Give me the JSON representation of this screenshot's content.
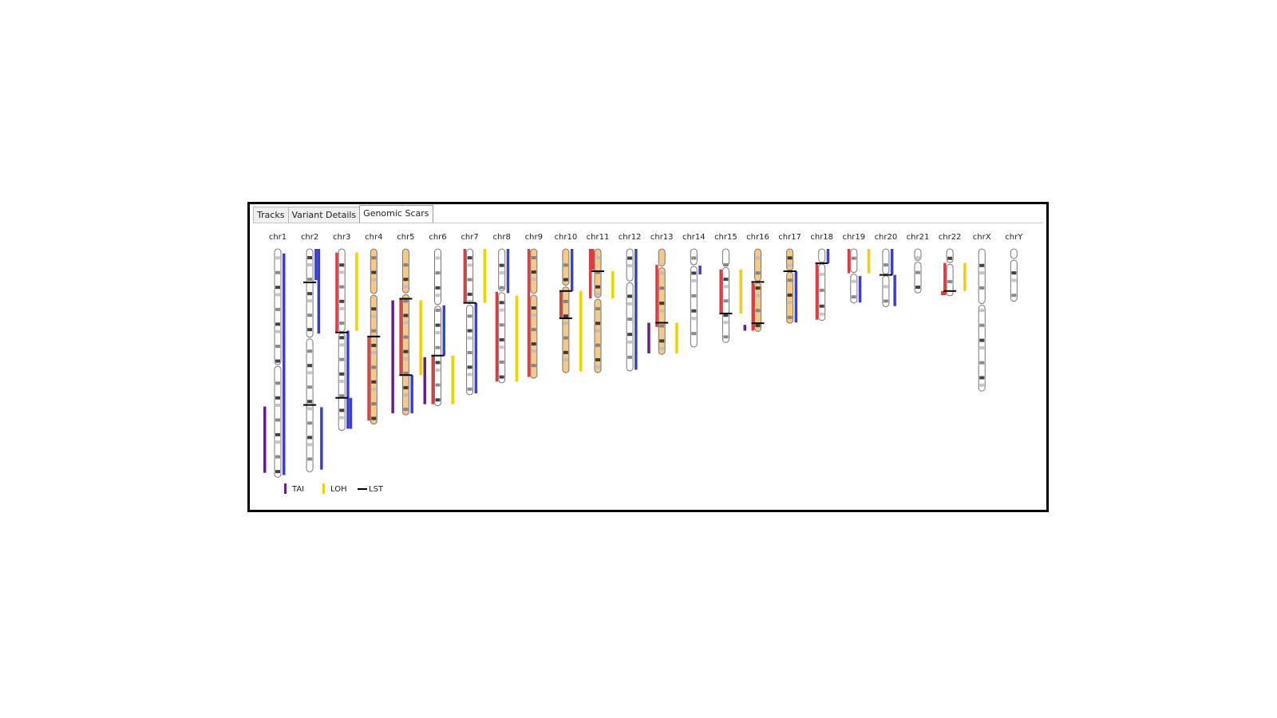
{
  "tabs": [
    {
      "label": "Tracks",
      "active": false
    },
    {
      "label": "Variant Details",
      "active": false
    },
    {
      "label": "Genomic Scars",
      "active": true
    }
  ],
  "colors": {
    "TAI": "#6a1b8c",
    "LOH": "#f2d000",
    "LST": "#000000",
    "copy_loss": "#e03c3c",
    "copy_gain": "#3a3fd0",
    "highlight": "#f4c98a"
  },
  "legend": [
    {
      "label": "TAI",
      "color": "#6a1b8c",
      "shape": "vbar"
    },
    {
      "label": "LOH",
      "color": "#f2d000",
      "shape": "vbar"
    },
    {
      "label": "LST",
      "color": "#000000",
      "shape": "hbar"
    }
  ],
  "chromosomes": [
    {
      "name": "chr1",
      "length": 249,
      "centromere": 0.51,
      "highlight": false,
      "loss": [],
      "gain": [
        [
          0.02,
          0.99
        ]
      ],
      "tai": [
        [
          0.69,
          0.98
        ]
      ],
      "loh": [],
      "lst": []
    },
    {
      "name": "chr2",
      "length": 243,
      "centromere": 0.4,
      "highlight": false,
      "loss": [],
      "gain": [
        [
          0.0,
          0.14
        ],
        [
          0.0,
          0.38
        ],
        [
          0.71,
          0.99
        ]
      ],
      "tai": [],
      "loh": [],
      "lst": [
        0.15,
        0.7
      ]
    },
    {
      "name": "chr3",
      "length": 198,
      "centromere": 0.46,
      "highlight": false,
      "loss": [
        [
          0.02,
          0.46
        ]
      ],
      "gain": [
        [
          0.45,
          0.99
        ],
        [
          0.82,
          0.99
        ]
      ],
      "tai": [],
      "loh": [
        [
          0.02,
          0.45
        ]
      ],
      "lst": [
        0.46,
        0.82
      ]
    },
    {
      "name": "chr4",
      "length": 191,
      "centromere": 0.26,
      "highlight": true,
      "loss": [
        [
          0.5,
          0.98
        ]
      ],
      "gain": [],
      "tai": [],
      "loh": [],
      "lst": [
        0.5
      ]
    },
    {
      "name": "chr5",
      "length": 181,
      "centromere": 0.27,
      "highlight": true,
      "loss": [
        [
          0.3,
          0.76
        ]
      ],
      "gain": [
        [
          0.76,
          0.99
        ]
      ],
      "tai": [
        [
          0.31,
          0.99
        ]
      ],
      "loh": [
        [
          0.31,
          0.76
        ]
      ],
      "lst": [
        0.3,
        0.76
      ]
    },
    {
      "name": "chr6",
      "length": 171,
      "centromere": 0.36,
      "highlight": false,
      "loss": [
        [
          0.68,
          0.99
        ]
      ],
      "gain": [
        [
          0.36,
          0.68
        ]
      ],
      "tai": [
        [
          0.69,
          0.99
        ]
      ],
      "loh": [
        [
          0.68,
          0.99
        ]
      ],
      "lst": [
        0.68
      ]
    },
    {
      "name": "chr7",
      "length": 159,
      "centromere": 0.38,
      "highlight": false,
      "loss": [
        [
          0.0,
          0.37
        ]
      ],
      "gain": [
        [
          0.37,
          0.99
        ]
      ],
      "tai": [],
      "loh": [
        [
          0.0,
          0.37
        ]
      ],
      "lst": [
        0.37
      ]
    },
    {
      "name": "chr8",
      "length": 146,
      "centromere": 0.32,
      "highlight": false,
      "loss": [
        [
          0.32,
          0.99
        ]
      ],
      "gain": [
        [
          0.0,
          0.33
        ]
      ],
      "tai": [],
      "loh": [
        [
          0.35,
          0.99
        ]
      ],
      "lst": []
    },
    {
      "name": "chr9",
      "length": 141,
      "centromere": 0.35,
      "highlight": true,
      "loss": [
        [
          0.0,
          0.99
        ]
      ],
      "gain": [],
      "tai": [],
      "loh": [],
      "lst": []
    },
    {
      "name": "chr10",
      "length": 135,
      "centromere": 0.3,
      "highlight": true,
      "loss": [
        [
          0.34,
          0.56
        ]
      ],
      "gain": [
        [
          0.0,
          0.34
        ]
      ],
      "tai": [],
      "loh": [
        [
          0.34,
          0.99
        ]
      ],
      "lst": [
        0.34,
        0.56
      ]
    },
    {
      "name": "chr11",
      "length": 135,
      "centromere": 0.4,
      "highlight": true,
      "loss": [
        [
          0.0,
          0.17
        ],
        [
          0.0,
          0.4
        ]
      ],
      "gain": [],
      "tai": [],
      "loh": [
        [
          0.18,
          0.4
        ]
      ],
      "lst": [
        0.18
      ]
    },
    {
      "name": "chr12",
      "length": 133,
      "centromere": 0.27,
      "highlight": false,
      "loss": [],
      "gain": [
        [
          0.0,
          0.99
        ]
      ],
      "tai": [],
      "loh": [],
      "lst": []
    },
    {
      "name": "chr13",
      "length": 115,
      "centromere": 0.17,
      "highlight": true,
      "loss": [
        [
          0.15,
          0.74
        ]
      ],
      "gain": [],
      "tai": [
        [
          0.7,
          0.99
        ]
      ],
      "loh": [
        [
          0.7,
          0.99
        ]
      ],
      "lst": [
        0.7
      ]
    },
    {
      "name": "chr14",
      "length": 107,
      "centromere": 0.17,
      "highlight": false,
      "loss": [],
      "gain": [
        [
          0.17,
          0.26
        ]
      ],
      "tai": [],
      "loh": [],
      "lst": []
    },
    {
      "name": "chr15",
      "length": 102,
      "centromere": 0.19,
      "highlight": false,
      "loss": [
        [
          0.22,
          0.69
        ]
      ],
      "gain": [],
      "tai": [],
      "loh": [
        [
          0.22,
          0.69
        ]
      ],
      "lst": [
        0.69
      ]
    },
    {
      "name": "chr16",
      "length": 90,
      "centromere": 0.4,
      "highlight": true,
      "loss": [
        [
          0.4,
          0.99
        ]
      ],
      "gain": [],
      "tai": [
        [
          0.92,
          0.99
        ]
      ],
      "loh": [],
      "lst": [
        0.4,
        0.9
      ]
    },
    {
      "name": "chr17",
      "length": 81,
      "centromere": 0.3,
      "highlight": true,
      "loss": [],
      "gain": [
        [
          0.3,
          0.99
        ]
      ],
      "tai": [],
      "loh": [],
      "lst": [
        0.3
      ]
    },
    {
      "name": "chr18",
      "length": 78,
      "centromere": 0.2,
      "highlight": false,
      "loss": [
        [
          0.2,
          0.99
        ]
      ],
      "gain": [
        [
          0.0,
          0.2
        ]
      ],
      "tai": [],
      "loh": [],
      "lst": [
        0.2
      ]
    },
    {
      "name": "chr19",
      "length": 59,
      "centromere": 0.45,
      "highlight": false,
      "loss": [
        [
          0.0,
          0.45
        ]
      ],
      "gain": [
        [
          0.5,
          0.99
        ]
      ],
      "tai": [],
      "loh": [
        [
          0.0,
          0.45
        ]
      ],
      "lst": []
    },
    {
      "name": "chr20",
      "length": 63,
      "centromere": 0.45,
      "highlight": false,
      "loss": [],
      "gain": [
        [
          0.0,
          0.45
        ],
        [
          0.45,
          0.99
        ]
      ],
      "tai": [],
      "loh": [],
      "lst": [
        0.45
      ]
    },
    {
      "name": "chr21",
      "length": 48,
      "centromere": 0.28,
      "highlight": false,
      "loss": [],
      "gain": [],
      "tai": [],
      "loh": [],
      "lst": []
    },
    {
      "name": "chr22",
      "length": 51,
      "centromere": 0.31,
      "highlight": false,
      "loss": [
        [
          0.3,
          0.99
        ],
        [
          0.9,
          0.99
        ]
      ],
      "gain": [],
      "tai": [],
      "loh": [
        [
          0.3,
          0.9
        ]
      ],
      "lst": [
        0.9
      ]
    },
    {
      "name": "chrX",
      "length": 155,
      "centromere": 0.39,
      "highlight": false,
      "loss": [],
      "gain": [],
      "tai": [],
      "loh": [],
      "lst": []
    },
    {
      "name": "chrY",
      "length": 57,
      "centromere": 0.2,
      "highlight": false,
      "loss": [],
      "gain": [],
      "tai": [],
      "loh": [],
      "lst": []
    }
  ]
}
